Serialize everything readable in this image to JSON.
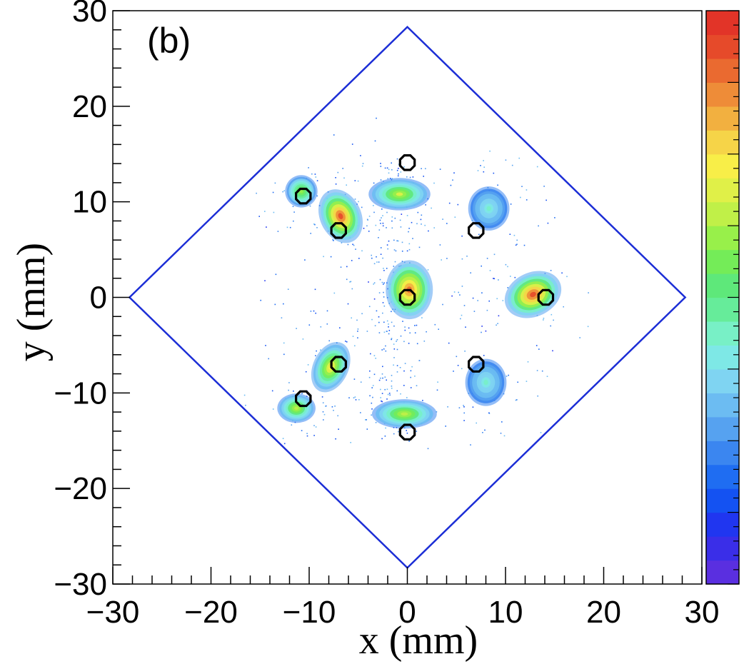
{
  "panel_label": "(b)",
  "colors": {
    "frame": "#000000",
    "boundary": "#1c2ed6",
    "marker_stroke": "#000000",
    "palette": [
      "#5a2fe0",
      "#3a2ee8",
      "#2036f0",
      "#1452f2",
      "#1f6df2",
      "#3b86f0",
      "#56a2f0",
      "#6cbcf2",
      "#7fd4f2",
      "#7ee8e6",
      "#78f0c6",
      "#66ec9a",
      "#5ee87a",
      "#74ec58",
      "#98f04a",
      "#c0f048",
      "#e0f048",
      "#f8ee48",
      "#f6d448",
      "#f2b040",
      "#ee8c38",
      "#ea6a30",
      "#e64a2a",
      "#e23428"
    ]
  },
  "chart_data": {
    "type": "heatmap",
    "xlabel": "x (mm)",
    "ylabel": "y (mm)",
    "xlim": [
      -30,
      30
    ],
    "ylim": [
      -30,
      30
    ],
    "x_ticks": [
      -30,
      -20,
      -10,
      0,
      10,
      20,
      30
    ],
    "y_ticks": [
      -30,
      -20,
      -10,
      0,
      10,
      20,
      30
    ],
    "x_tick_labels": [
      "−30",
      "−20",
      "−10",
      "0",
      "10",
      "20",
      "30"
    ],
    "y_tick_labels": [
      "−30",
      "−20",
      "−10",
      "0",
      "10",
      "20",
      "30"
    ],
    "boundary": [
      [
        0,
        28.3
      ],
      [
        28.3,
        0
      ],
      [
        0,
        -28.3
      ],
      [
        -28.3,
        0
      ]
    ],
    "markers": [
      [
        0,
        14.1
      ],
      [
        -10.6,
        10.6
      ],
      [
        -7,
        7
      ],
      [
        7,
        7
      ],
      [
        0,
        0
      ],
      [
        14.1,
        0
      ],
      [
        -7,
        -7
      ],
      [
        7,
        -7
      ],
      [
        -10.6,
        -10.6
      ],
      [
        0,
        -14.1
      ]
    ],
    "blobs": [
      {
        "x": -0.8,
        "y": 10.8,
        "sx": 2.1,
        "sy": 1.1,
        "rot": 0,
        "peak": 0.62
      },
      {
        "x": -10.8,
        "y": 11.1,
        "sx": 1.1,
        "sy": 1.1,
        "rot": 0,
        "peak": 0.55
      },
      {
        "x": -6.8,
        "y": 8.5,
        "sx": 1.4,
        "sy": 1.9,
        "rot": -25,
        "peak": 0.95
      },
      {
        "x": 8.3,
        "y": 9.3,
        "sx": 1.4,
        "sy": 1.5,
        "rot": 0,
        "peak": 0.3
      },
      {
        "x": 0.2,
        "y": 0.8,
        "sx": 1.6,
        "sy": 2.0,
        "rot": 0,
        "peak": 0.92
      },
      {
        "x": 12.8,
        "y": 0.3,
        "sx": 2.0,
        "sy": 1.5,
        "rot": -25,
        "peak": 0.98
      },
      {
        "x": -7.8,
        "y": -7.3,
        "sx": 1.2,
        "sy": 1.8,
        "rot": 25,
        "peak": 0.7
      },
      {
        "x": 8.0,
        "y": -8.9,
        "sx": 1.4,
        "sy": 1.6,
        "rot": 0,
        "peak": 0.3
      },
      {
        "x": -11.3,
        "y": -11.6,
        "sx": 1.3,
        "sy": 1.0,
        "rot": 0,
        "peak": 0.6
      },
      {
        "x": -0.3,
        "y": -12.2,
        "sx": 2.2,
        "sy": 1.0,
        "rot": 0,
        "peak": 0.6
      }
    ],
    "colorbar_levels": 24,
    "grid": false
  }
}
